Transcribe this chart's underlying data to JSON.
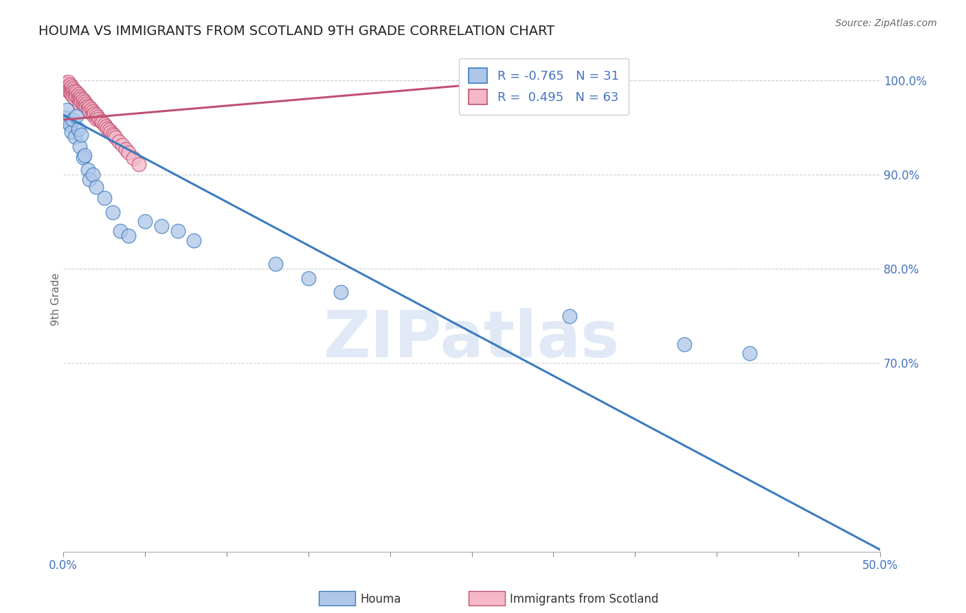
{
  "title": "HOUMA VS IMMIGRANTS FROM SCOTLAND 9TH GRADE CORRELATION CHART",
  "source": "Source: ZipAtlas.com",
  "ylabel": "9th Grade",
  "legend_label1": "Houma",
  "legend_label2": "Immigrants from Scotland",
  "R1": -0.765,
  "N1": 31,
  "R2": 0.495,
  "N2": 63,
  "color_blue": "#aec6e8",
  "color_blue_line": "#3a7bbf",
  "color_pink": "#f4b8c8",
  "color_pink_line": "#c05070",
  "color_blue_text": "#4472c4",
  "xlim": [
    0.0,
    0.5
  ],
  "ylim": [
    0.5,
    1.035
  ],
  "yticks": [
    0.7,
    0.8,
    0.9,
    1.0
  ],
  "xtick_positions": [
    0.0,
    0.05,
    0.1,
    0.15,
    0.2,
    0.25,
    0.3,
    0.35,
    0.4,
    0.45,
    0.5
  ],
  "xtick_labels_show": {
    "0.0": "0.0%",
    "0.5": "50.0%"
  },
  "blue_x": [
    0.001,
    0.002,
    0.003,
    0.004,
    0.005,
    0.006,
    0.007,
    0.008,
    0.009,
    0.01,
    0.011,
    0.012,
    0.013,
    0.015,
    0.016,
    0.018,
    0.02,
    0.025,
    0.03,
    0.035,
    0.04,
    0.05,
    0.06,
    0.07,
    0.08,
    0.13,
    0.15,
    0.17,
    0.31,
    0.38,
    0.42
  ],
  "blue_y": [
    0.96,
    0.968,
    0.955,
    0.952,
    0.945,
    0.958,
    0.94,
    0.962,
    0.948,
    0.93,
    0.942,
    0.918,
    0.92,
    0.905,
    0.895,
    0.9,
    0.887,
    0.875,
    0.86,
    0.84,
    0.835,
    0.85,
    0.845,
    0.84,
    0.83,
    0.805,
    0.79,
    0.775,
    0.75,
    0.72,
    0.71
  ],
  "pink_x": [
    0.001,
    0.001,
    0.002,
    0.002,
    0.003,
    0.003,
    0.003,
    0.004,
    0.004,
    0.004,
    0.005,
    0.005,
    0.005,
    0.006,
    0.006,
    0.006,
    0.007,
    0.007,
    0.007,
    0.008,
    0.008,
    0.009,
    0.009,
    0.01,
    0.01,
    0.01,
    0.011,
    0.011,
    0.012,
    0.012,
    0.013,
    0.013,
    0.014,
    0.014,
    0.015,
    0.015,
    0.016,
    0.016,
    0.017,
    0.018,
    0.018,
    0.019,
    0.02,
    0.02,
    0.021,
    0.022,
    0.023,
    0.024,
    0.025,
    0.026,
    0.027,
    0.028,
    0.029,
    0.03,
    0.031,
    0.032,
    0.034,
    0.036,
    0.038,
    0.04,
    0.043,
    0.046,
    0.27
  ],
  "pink_y": [
    0.997,
    0.994,
    0.996,
    0.992,
    0.998,
    0.993,
    0.989,
    0.995,
    0.991,
    0.987,
    0.993,
    0.989,
    0.985,
    0.991,
    0.987,
    0.983,
    0.989,
    0.985,
    0.981,
    0.987,
    0.983,
    0.985,
    0.981,
    0.983,
    0.979,
    0.975,
    0.981,
    0.977,
    0.979,
    0.975,
    0.977,
    0.973,
    0.975,
    0.971,
    0.973,
    0.969,
    0.971,
    0.967,
    0.969,
    0.967,
    0.963,
    0.965,
    0.963,
    0.959,
    0.961,
    0.959,
    0.957,
    0.955,
    0.953,
    0.951,
    0.949,
    0.947,
    0.945,
    0.943,
    0.941,
    0.939,
    0.935,
    0.931,
    0.927,
    0.923,
    0.917,
    0.911,
    0.998
  ],
  "blue_line_x": [
    0.0,
    0.5
  ],
  "blue_line_y": [
    0.963,
    0.502
  ],
  "pink_line_x": [
    0.0,
    0.27
  ],
  "pink_line_y": [
    0.958,
    0.998
  ],
  "watermark_text": "ZIPatlas",
  "background_color": "#ffffff",
  "grid_color": "#cccccc"
}
